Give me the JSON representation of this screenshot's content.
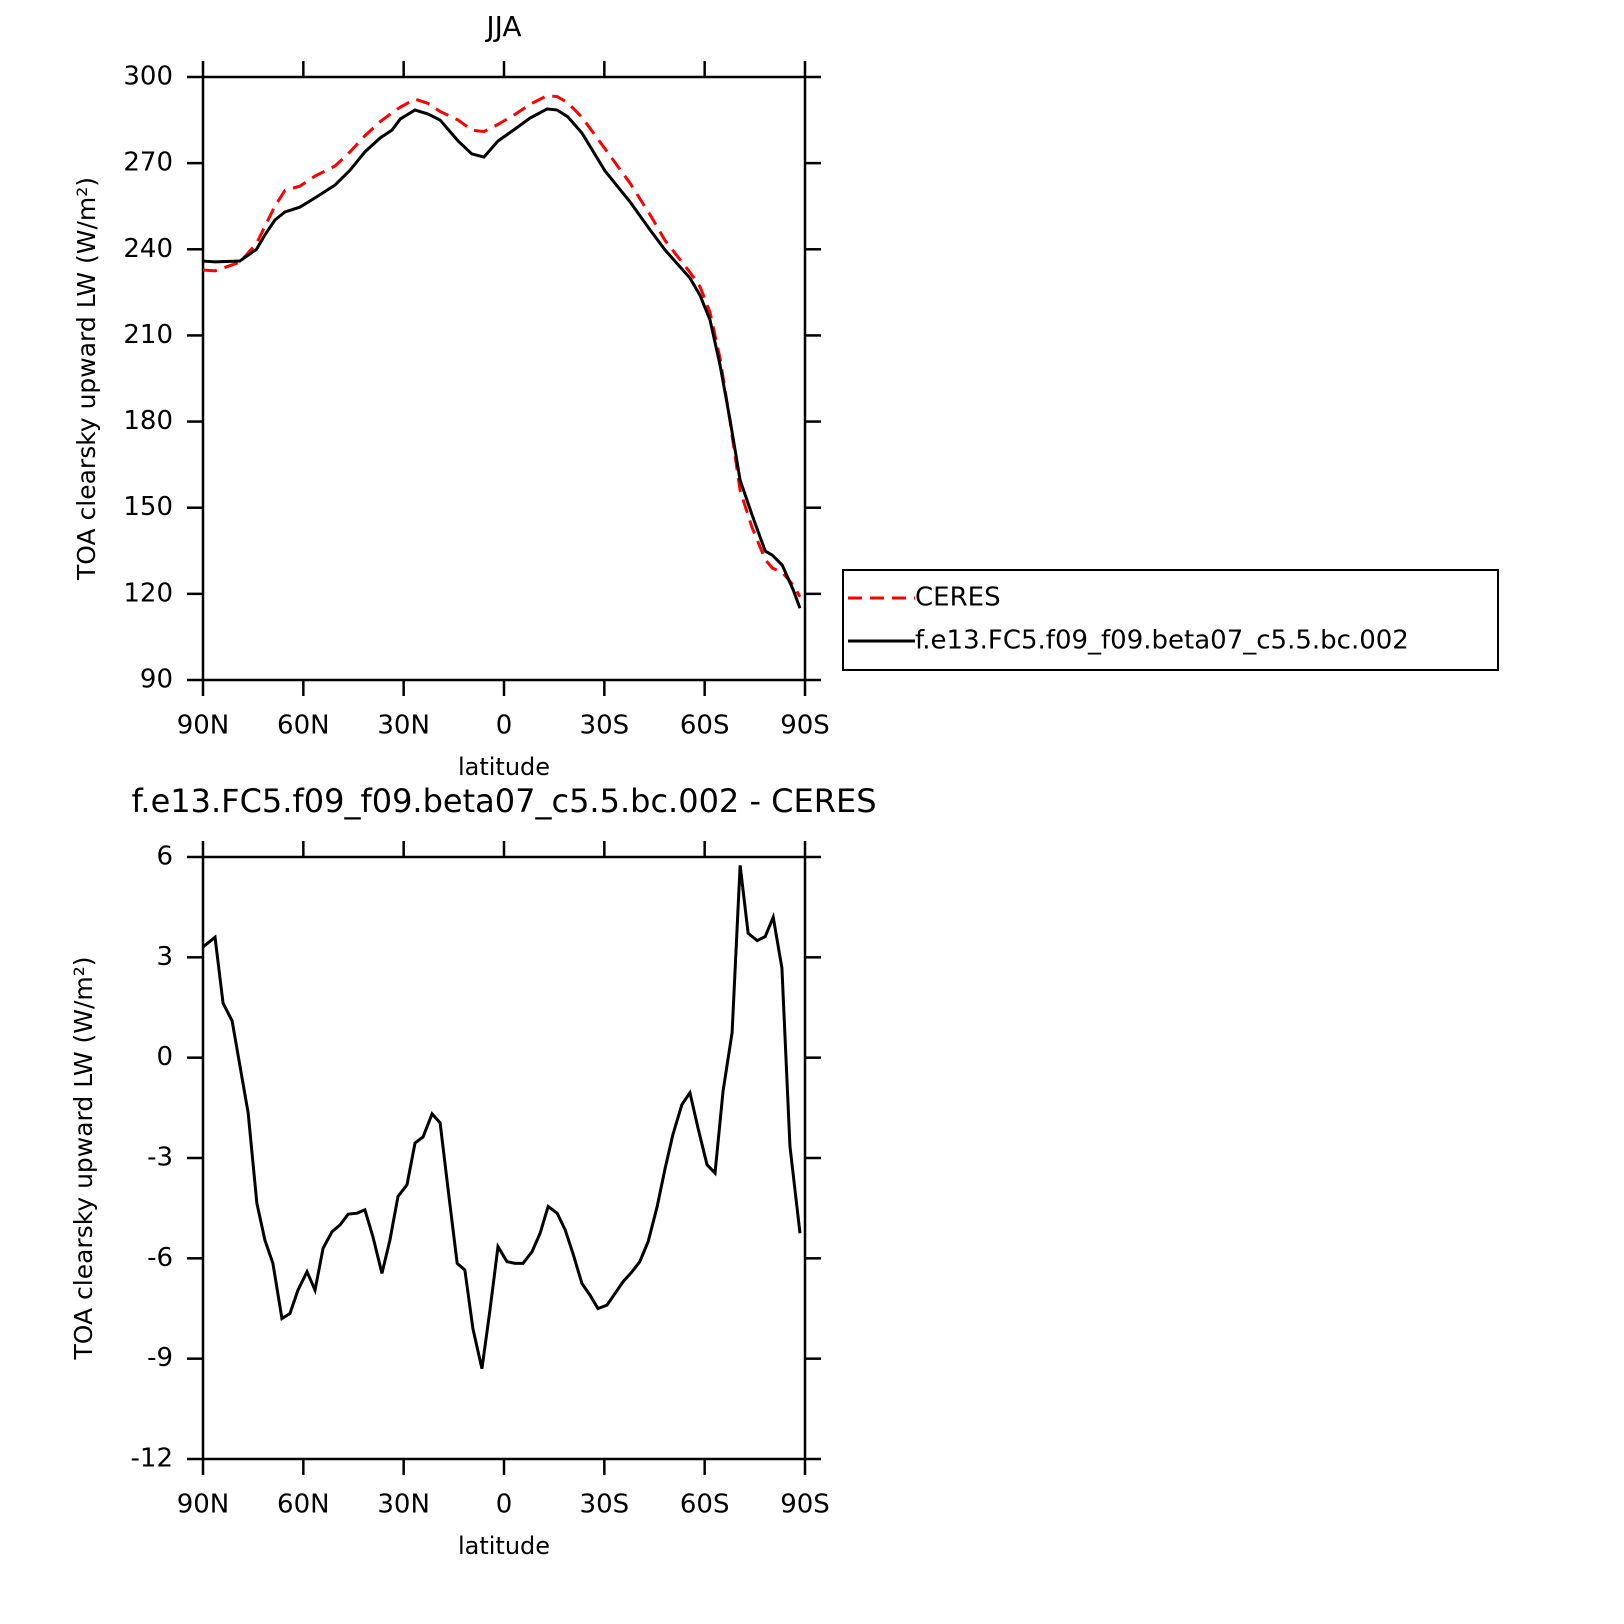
{
  "chart_data": [
    {
      "type": "line",
      "title": "JJA",
      "x_label": "latitude",
      "y_label": "TOA clearsky upward LW (W/m²)",
      "x": [
        90,
        86.4,
        79,
        74,
        71.5,
        68.5,
        65.5,
        61,
        56.5,
        50.5,
        46,
        41.6,
        37,
        33.5,
        31,
        26.6,
        22.7,
        19.1,
        13.7,
        9.6,
        6,
        1.8,
        -3.3,
        -7.8,
        -12.9,
        -15.9,
        -19.1,
        -23.3,
        -30.2,
        -37.7,
        -43.7,
        -48.2,
        -55.6,
        -58.6,
        -61.6,
        -64.6,
        -67.6,
        -70.6,
        -74.2,
        -78.1,
        -80.2,
        -83.2,
        -86.5,
        -88.5
      ],
      "series": [
        {
          "name": "CERES",
          "color": "#ff0000",
          "line_style": "dashed",
          "values": [
            232.8,
            232.5,
            235.5,
            242,
            248,
            255,
            260.5,
            262,
            265.5,
            269,
            274,
            279.5,
            284.5,
            287.5,
            289.5,
            292.3,
            290.8,
            288,
            285,
            281.5,
            281,
            283.5,
            287,
            290.5,
            293.5,
            293.2,
            291,
            286,
            275,
            263,
            252,
            243,
            232,
            227,
            218,
            202,
            180,
            156,
            143,
            132,
            129,
            127.5,
            123,
            119
          ]
        },
        {
          "name": "f.e13.FC5.f09_f09.beta07_c5.5.bc.002",
          "color": "#000000",
          "line_style": "solid",
          "values": [
            235.9,
            235.6,
            235.9,
            240,
            245,
            250.2,
            253,
            254.7,
            257.9,
            262.4,
            267.6,
            273.9,
            278.8,
            281.5,
            285.4,
            288.5,
            287.1,
            285,
            277.7,
            273.2,
            272.1,
            277.7,
            281.9,
            285.7,
            288.9,
            288.5,
            286.1,
            280.5,
            267.3,
            256.5,
            246.7,
            239.7,
            230,
            224,
            215.4,
            199.7,
            180.5,
            159.6,
            147.4,
            134.9,
            133.5,
            130,
            121.3,
            115
          ]
        }
      ],
      "xlim": [
        90,
        -90
      ],
      "ylim": [
        90,
        300
      ],
      "xticks": [
        {
          "value": 90,
          "label": "90N"
        },
        {
          "value": 60,
          "label": "60N"
        },
        {
          "value": 30,
          "label": "30N"
        },
        0,
        {
          "value": -30,
          "label": "30S"
        },
        {
          "value": -60,
          "label": "60S"
        },
        {
          "value": -90,
          "label": "90S"
        }
      ],
      "yticks": [
        90,
        120,
        150,
        180,
        210,
        240,
        270,
        300
      ],
      "legend": "right"
    },
    {
      "type": "line",
      "title": "f.e13.FC5.f09_f09.beta07_c5.5.bc.002 - CERES",
      "x_label": "latitude",
      "y_label": "TOA clearsky upward LW (W/m²)",
      "x": [
        90,
        86.4,
        84,
        81.3,
        76.5,
        73.9,
        71.5,
        69.1,
        66.4,
        64,
        61.6,
        58.9,
        56.5,
        54.1,
        51.4,
        49,
        46.6,
        43.9,
        41.6,
        39.2,
        36.5,
        34.1,
        31.7,
        29,
        26.6,
        24.2,
        21.5,
        19.1,
        16.7,
        14,
        11.7,
        9.3,
        6.6,
        4.2,
        1.8,
        -0.9,
        -3.3,
        -5.7,
        -8.4,
        -10.8,
        -13.2,
        -15.9,
        -18.3,
        -20.6,
        -23.3,
        -25.7,
        -28.1,
        -30.8,
        -33.2,
        -35.6,
        -38.3,
        -40.6,
        -43.1,
        -45.8,
        -48.2,
        -50.5,
        -53.2,
        -55.6,
        -58,
        -60.7,
        -63.1,
        -65.5,
        -68.2,
        -70.6,
        -73,
        -75.7,
        -78.1,
        -80.5,
        -83.1,
        -85.5,
        -88.5
      ],
      "series": [
        {
          "color": "#000000",
          "line_style": "solid",
          "values": [
            3.31,
            3.6,
            1.63,
            1.1,
            -1.65,
            -4.35,
            -5.45,
            -6.15,
            -7.8,
            -7.65,
            -6.95,
            -6.4,
            -6.95,
            -5.7,
            -5.2,
            -5.0,
            -4.68,
            -4.65,
            -4.55,
            -5.35,
            -6.45,
            -5.45,
            -4.15,
            -3.8,
            -2.55,
            -2.37,
            -1.68,
            -1.95,
            -3.95,
            -6.15,
            -6.35,
            -8.1,
            -9.3,
            -7.55,
            -5.65,
            -6.1,
            -6.15,
            -6.15,
            -5.8,
            -5.25,
            -4.45,
            -4.65,
            -5.15,
            -5.85,
            -6.75,
            -7.1,
            -7.5,
            -7.4,
            -7.05,
            -6.7,
            -6.4,
            -6.1,
            -5.5,
            -4.45,
            -3.3,
            -2.3,
            -1.4,
            -1.05,
            -2.1,
            -3.2,
            -3.45,
            -1.0,
            0.75,
            5.75,
            3.72,
            3.5,
            3.62,
            4.2,
            2.68,
            -2.65,
            -5.25
          ]
        }
      ],
      "xlim": [
        90,
        -90
      ],
      "ylim": [
        -12,
        6
      ],
      "xticks": [
        {
          "value": 90,
          "label": "90N"
        },
        {
          "value": 60,
          "label": "60N"
        },
        {
          "value": 30,
          "label": "30N"
        },
        0,
        {
          "value": -30,
          "label": "30S"
        },
        {
          "value": -60,
          "label": "60S"
        },
        {
          "value": -90,
          "label": "90S"
        }
      ],
      "yticks": [
        -12,
        -9,
        -6,
        -3,
        0,
        3,
        6
      ]
    }
  ]
}
